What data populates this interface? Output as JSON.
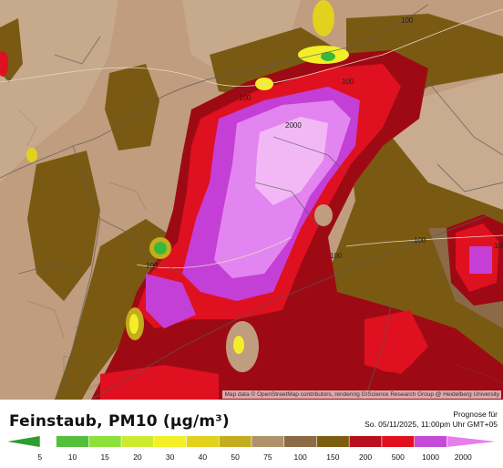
{
  "legend": {
    "title": "Feinstaub, PM10 (µg/m³)",
    "forecast_label": "Prognose für",
    "forecast_time": "So. 05/11/2025, 11:00pm Uhr GMT+05",
    "scale": [
      {
        "value": "5",
        "color": "#2e9e2e"
      },
      {
        "value": "10",
        "color": "#52c03a"
      },
      {
        "value": "15",
        "color": "#8ee03a"
      },
      {
        "value": "20",
        "color": "#cdea30"
      },
      {
        "value": "30",
        "color": "#f4f028"
      },
      {
        "value": "40",
        "color": "#e2d21e"
      },
      {
        "value": "50",
        "color": "#c5ac1e"
      },
      {
        "value": "75",
        "color": "#b0926a"
      },
      {
        "value": "100",
        "color": "#8c6a46"
      },
      {
        "value": "150",
        "color": "#7d5e10"
      },
      {
        "value": "200",
        "color": "#b80f1e"
      },
      {
        "value": "500",
        "color": "#e0101e"
      },
      {
        "value": "1000",
        "color": "#c44ad8"
      },
      {
        "value": "2000",
        "color": "#e67fee"
      }
    ]
  },
  "map": {
    "attribution": "Map data © OpenStreetMap contributors, rendering GIScience Research Group @ Heidelberg University",
    "contour_labels": [
      "100",
      "100",
      "100",
      "2000",
      "100",
      "100",
      "100",
      "100"
    ],
    "colors": {
      "background_low": "#c0a080",
      "background_mid": "#a07a50",
      "olive": "#7a5a12",
      "dark_red": "#9e0a14",
      "red": "#df1020",
      "magenta": "#c43fd6",
      "light_magenta": "#e385f0",
      "pale_pink": "#f2b8f6",
      "yellow": "#f2ee2a",
      "green": "#3ab83a"
    }
  }
}
